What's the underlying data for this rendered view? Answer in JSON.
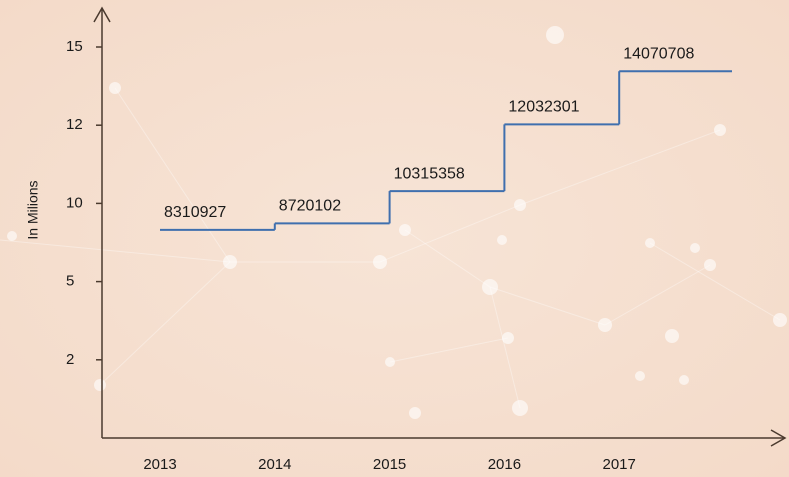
{
  "chart_data": {
    "type": "step",
    "y_label": "In Milions",
    "categories": [
      "2013",
      "2014",
      "2015",
      "2016",
      "2017"
    ],
    "series": [
      {
        "color": "#3f6fae",
        "values": [
          8.310927,
          8.720102,
          10.315358,
          12.032301,
          14.070708
        ],
        "value_labels": [
          "8310927",
          "8720102",
          "10315358",
          "12032301",
          "14070708"
        ]
      }
    ],
    "ylim": [
      0,
      15
    ],
    "yticks": [
      2,
      5,
      10,
      12,
      15
    ]
  }
}
